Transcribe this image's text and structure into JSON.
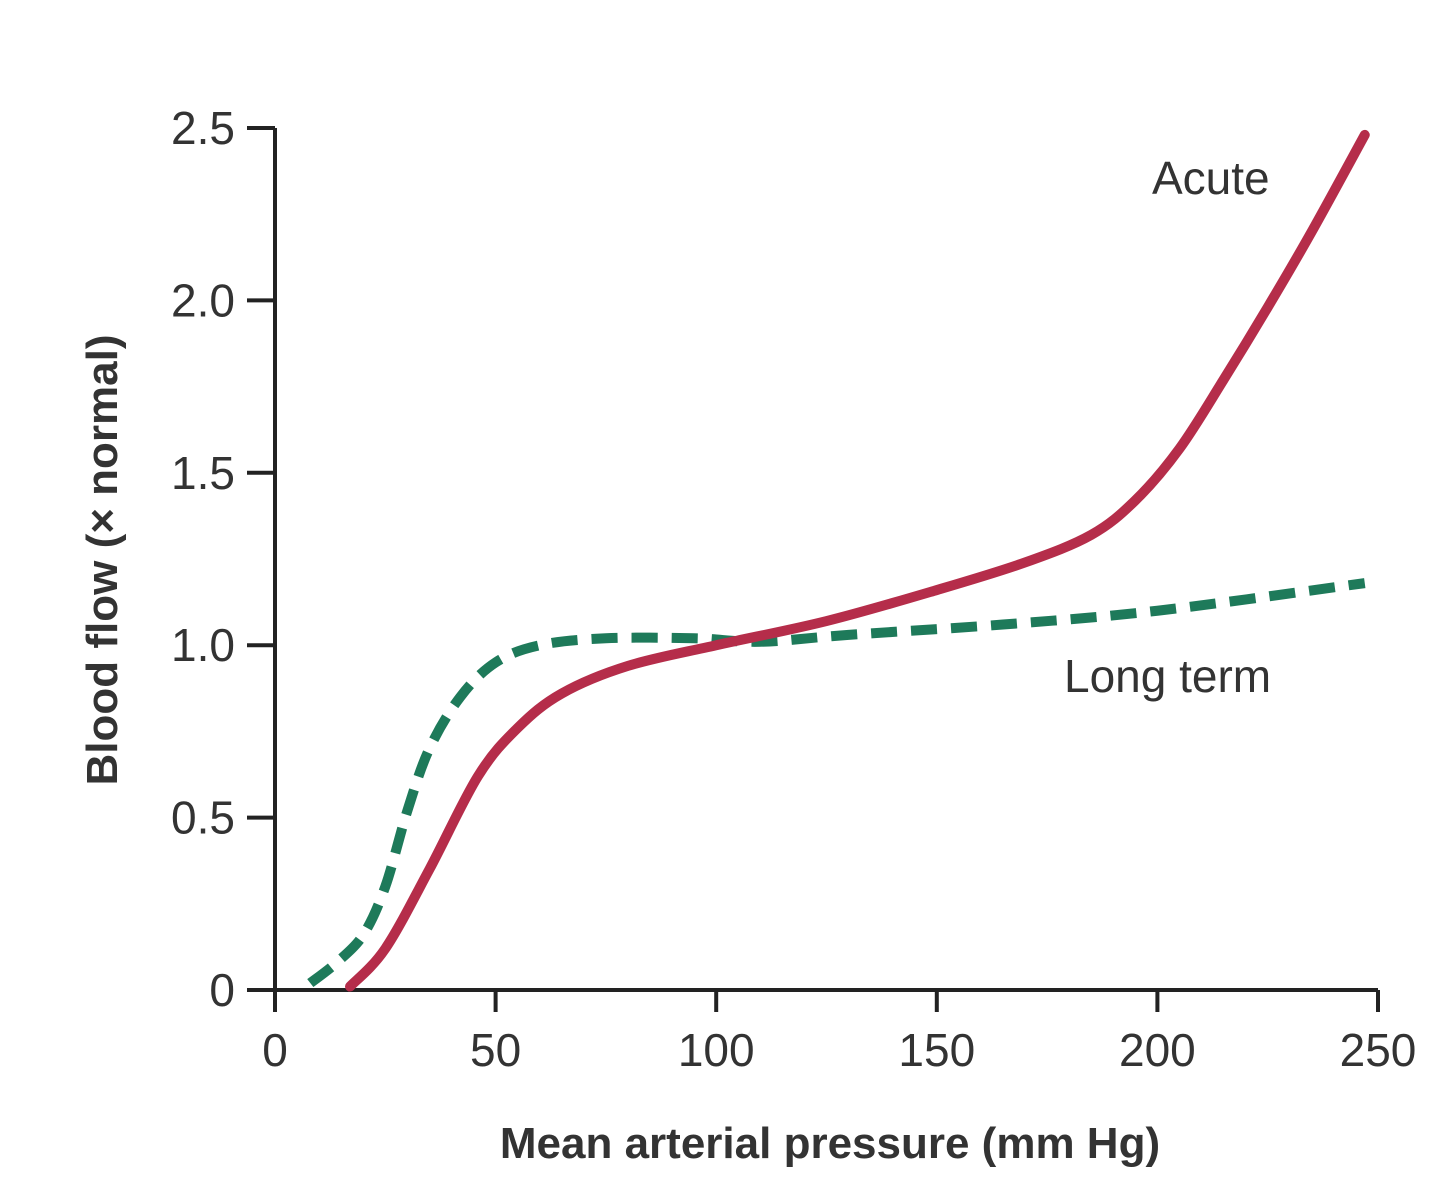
{
  "chart_data": {
    "type": "line",
    "title": "",
    "xlabel": "Mean arterial pressure (mm Hg)",
    "ylabel": "Blood flow (× normal)",
    "xlim": [
      0,
      250
    ],
    "ylim": [
      0,
      2.5
    ],
    "xticks": [
      "0",
      "50",
      "100",
      "150",
      "200",
      "250"
    ],
    "yticks": [
      "0",
      "0.5",
      "1.0",
      "1.5",
      "2.0",
      "2.5"
    ],
    "grid": false,
    "legend": "none (direct labels)",
    "series": [
      {
        "name": "Acute",
        "color": "#b52d4a",
        "style": "solid",
        "x": [
          17,
          25,
          35,
          46,
          55,
          65,
          80,
          100,
          125,
          150,
          170,
          185,
          195,
          205,
          215,
          225,
          235,
          247
        ],
        "y": [
          0.01,
          0.12,
          0.35,
          0.62,
          0.76,
          0.86,
          0.94,
          1.0,
          1.07,
          1.16,
          1.24,
          1.32,
          1.42,
          1.57,
          1.77,
          1.98,
          2.2,
          2.48
        ]
      },
      {
        "name": "Long term",
        "color": "#1e7a5a",
        "style": "dashed",
        "x": [
          8,
          14,
          20,
          25,
          30,
          35,
          42,
          50,
          60,
          75,
          95,
          110,
          130,
          165,
          200,
          247
        ],
        "y": [
          0.02,
          0.08,
          0.16,
          0.3,
          0.52,
          0.7,
          0.85,
          0.95,
          1.0,
          1.02,
          1.02,
          1.01,
          1.03,
          1.06,
          1.1,
          1.18
        ]
      }
    ]
  }
}
